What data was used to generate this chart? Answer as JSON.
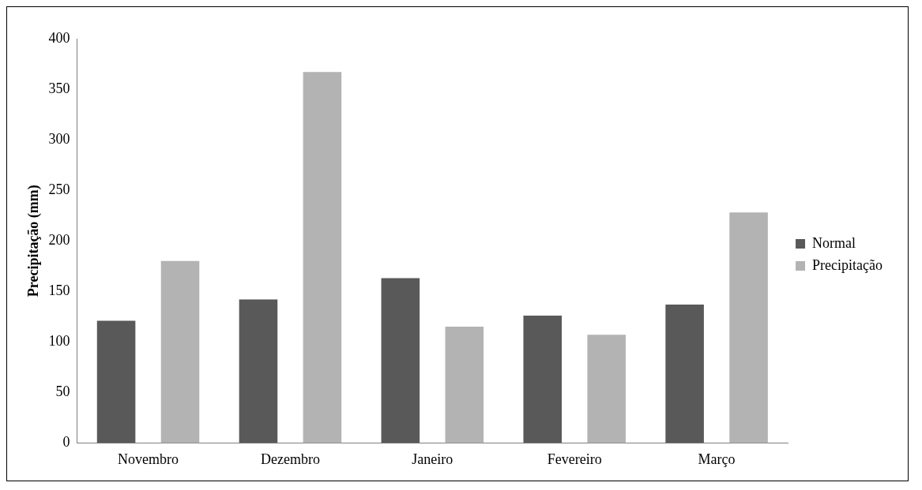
{
  "chart_data": {
    "type": "bar",
    "ylabel": "Precipitação (mm)",
    "categories": [
      "Novembro",
      "Dezembro",
      "Janeiro",
      "Fevereiro",
      "Março"
    ],
    "series": [
      {
        "name": "Normal",
        "color": "#595959",
        "values": [
          121,
          142,
          163,
          126,
          137
        ]
      },
      {
        "name": "Precipitação",
        "color": "#b3b3b3",
        "values": [
          180,
          367,
          115,
          107,
          228
        ]
      }
    ],
    "ylim": [
      0,
      400
    ],
    "yticks": [
      0,
      50,
      100,
      150,
      200,
      250,
      300,
      350,
      400
    ],
    "grid": false,
    "legend": "right"
  }
}
